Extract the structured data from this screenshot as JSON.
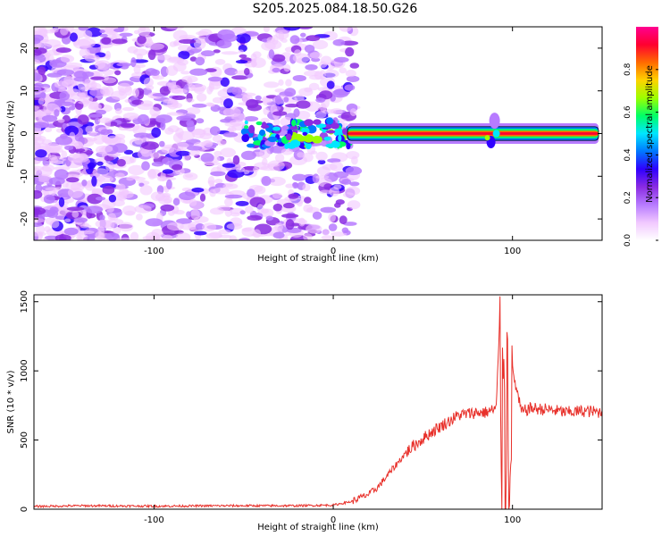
{
  "title": "S205.2025.084.18.50.G26",
  "colors": {
    "snr_line": "#e8302a",
    "scatter": "#7a1ff0",
    "colorbar": [
      "#ffffff",
      "#f1c8ff",
      "#b77bff",
      "#8a2be2",
      "#2f00ff",
      "#0078ff",
      "#00e6ff",
      "#00ff66",
      "#9cff00",
      "#ffd200",
      "#ff6a00",
      "#ff0030",
      "#ff0090"
    ]
  },
  "chart_data": [
    {
      "type": "heatmap",
      "xlabel": "Height of straight line (km)",
      "ylabel": "Frequency (Hz)",
      "xlim": [
        -167,
        150
      ],
      "ylim": [
        -25,
        25
      ],
      "xticks": [
        -100,
        0,
        100
      ],
      "yticks": [
        -20,
        -10,
        0,
        10,
        20
      ],
      "grid": false,
      "colorbar": {
        "label": "Normalized spectral amplitude",
        "range": [
          0,
          1
        ],
        "ticks": [
          "0.0",
          "0.2",
          "0.4",
          "0.6",
          "0.8"
        ]
      },
      "ridge": {
        "description_values": "strong narrow band near 0 Hz",
        "x_start": 8,
        "x_end": 148,
        "frequency": 0,
        "peak_amplitude": 0.95
      }
    },
    {
      "type": "line",
      "xlabel": "Height of straight line (km)",
      "ylabel": "SNR (10 * v/v)",
      "xlim": [
        -167,
        150
      ],
      "ylim": [
        0,
        1550
      ],
      "xticks": [
        -100,
        0,
        100
      ],
      "yticks": [
        0,
        500,
        1000,
        1500
      ],
      "grid": false,
      "series": [
        {
          "x": [
            -167,
            -140,
            -100,
            -60,
            -20,
            0,
            10,
            20,
            25,
            30,
            35,
            40,
            45,
            50,
            55,
            60,
            65,
            70,
            75,
            80,
            85,
            90,
            92,
            93,
            94,
            95,
            96,
            97,
            98,
            100,
            105,
            110,
            120,
            130,
            140,
            150
          ],
          "values": [
            20,
            25,
            22,
            25,
            25,
            30,
            55,
            110,
            160,
            240,
            320,
            400,
            460,
            510,
            560,
            600,
            640,
            680,
            690,
            700,
            700,
            720,
            780,
            1320,
            40,
            1550,
            20,
            1200,
            200,
            1000,
            700,
            730,
            720,
            700,
            710,
            700
          ]
        }
      ]
    }
  ],
  "labels": {
    "top_xlabel": "Height of straight line (km)",
    "top_ylabel": "Frequency (Hz)",
    "bottom_xlabel": "Height of straight line (km)",
    "bottom_ylabel": "SNR (10 * v/v)",
    "colorbar_label": "Normalized spectral amplitude",
    "top_xticks": [
      "-100",
      "0",
      "100"
    ],
    "top_yticks": [
      "-20",
      "-10",
      "0",
      "10",
      "20"
    ],
    "bottom_xticks": [
      "-100",
      "0",
      "100"
    ],
    "bottom_yticks": [
      "0",
      "500",
      "1000",
      "1500"
    ],
    "cbar_ticks": [
      "0.0",
      "0.2",
      "0.4",
      "0.6",
      "0.8"
    ]
  }
}
